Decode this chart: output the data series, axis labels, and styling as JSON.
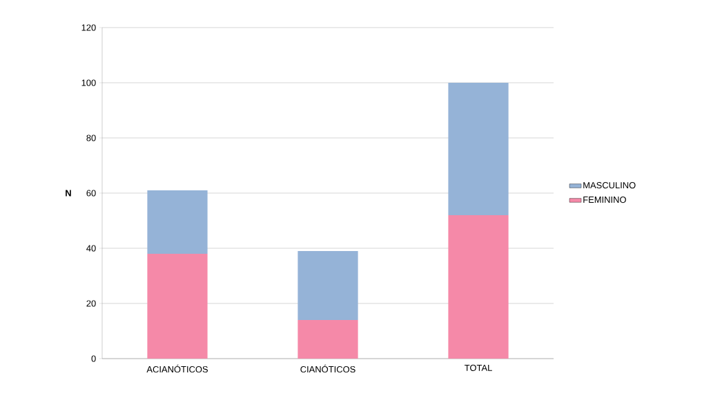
{
  "chart_data": {
    "type": "bar",
    "stacked": true,
    "ylabel": "N",
    "categories": [
      "ACIANÓTICOS",
      "CIANÓTICOS",
      "TOTAL"
    ],
    "series": [
      {
        "name": "FEMININO",
        "color": "#f589a8",
        "values": [
          38,
          14,
          52
        ]
      },
      {
        "name": "MASCULINO",
        "color": "#95b3d7",
        "values": [
          23,
          25,
          48
        ]
      }
    ],
    "ylim": [
      0,
      120
    ],
    "yticks": [
      0,
      20,
      40,
      60,
      80,
      100,
      120
    ],
    "grid": "y",
    "legend": "right"
  }
}
